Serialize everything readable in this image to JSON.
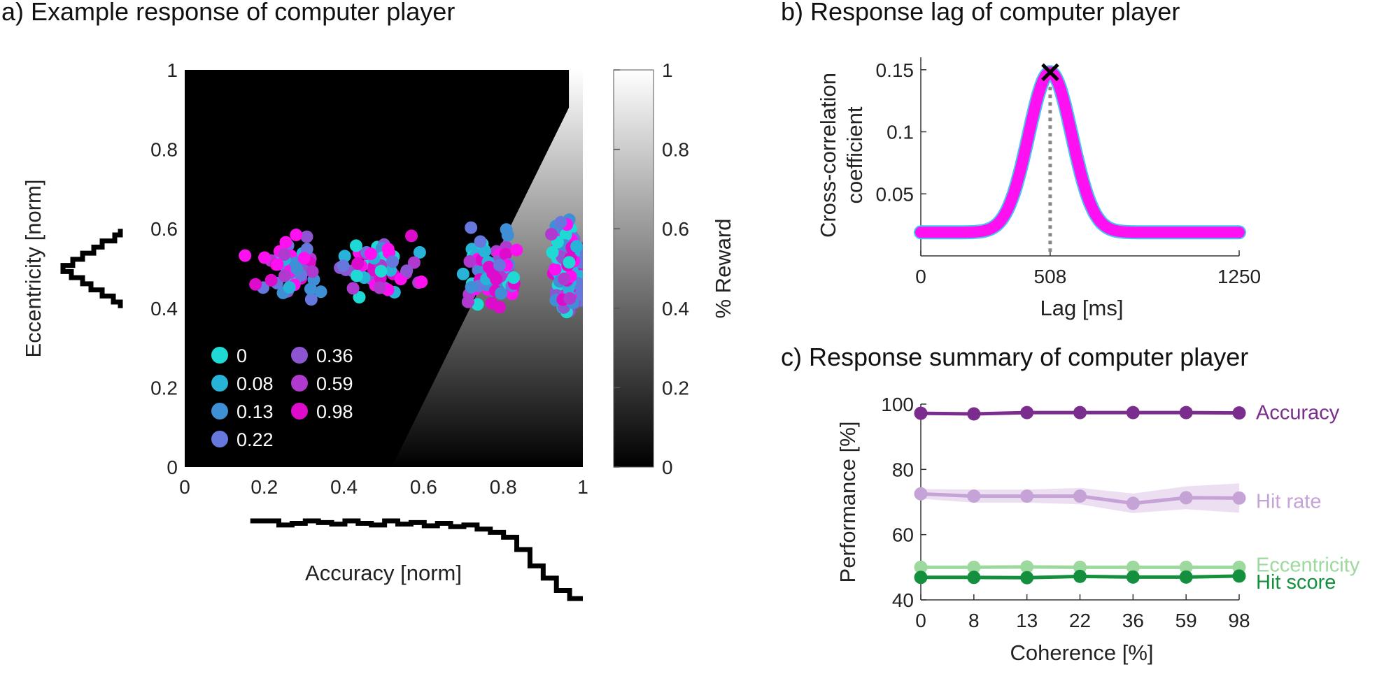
{
  "chart_data": [
    {
      "panel_title": "a) Example response of computer player",
      "type": "scatter",
      "xlabel": "Accuracy [norm]",
      "ylabel": "Eccentricity [norm]",
      "xlim": [
        0,
        1
      ],
      "ylim": [
        0,
        1
      ],
      "x_ticks": [
        "0",
        "0.2",
        "0.4",
        "0.6",
        "0.8",
        "1"
      ],
      "y_ticks": [
        "0",
        "0.2",
        "0.4",
        "0.6",
        "0.8",
        "1"
      ],
      "colorbar": {
        "label": "% Reward",
        "range": [
          0,
          1
        ],
        "ticks": [
          "0",
          "0.2",
          "0.4",
          "0.6",
          "0.8",
          "1"
        ]
      },
      "legend": {
        "placement": "lower-left",
        "entries": [
          {
            "label": "0",
            "color": "#1ed9d4"
          },
          {
            "label": "0.08",
            "color": "#27b4d8"
          },
          {
            "label": "0.13",
            "color": "#3f8fd7"
          },
          {
            "label": "0.22",
            "color": "#6677dd"
          },
          {
            "label": "0.36",
            "color": "#8e55d2"
          },
          {
            "label": "0.59",
            "color": "#b03ad0"
          },
          {
            "label": "0.98",
            "color": "#dd0ccc"
          }
        ]
      },
      "highlight_color": "#ff10f0",
      "clusters": [
        {
          "x_center": 0.27,
          "x_spread": 0.09,
          "y_spread": 0.035,
          "n": 55
        },
        {
          "x_center": 0.5,
          "x_spread": 0.09,
          "y_spread": 0.035,
          "n": 55
        },
        {
          "x_center": 0.77,
          "x_spread": 0.07,
          "y_spread": 0.04,
          "n": 80
        },
        {
          "x_center": 0.96,
          "x_spread": 0.035,
          "y_spread": 0.05,
          "n": 160
        }
      ],
      "eccentricity_histogram": [
        0.9,
        1.4,
        2.2,
        3.0,
        3.6,
        4.4,
        5.0,
        4.3,
        3.6,
        2.8,
        2.2,
        1.3,
        0.9
      ],
      "accuracy_histogram": [
        1.0,
        1.0,
        0.95,
        0.97,
        1.0,
        0.98,
        0.96,
        1.0,
        0.97,
        0.95,
        1.0,
        0.96,
        0.98,
        0.94,
        0.97,
        0.93,
        0.95,
        0.9,
        0.86,
        0.8,
        0.65,
        0.45,
        0.3,
        0.15,
        0.05
      ]
    },
    {
      "panel_title": "b) Response lag of computer player",
      "type": "line",
      "xlabel": "Lag [ms]",
      "ylabel": "Cross-correlation coefficient",
      "xlim": [
        0,
        1250
      ],
      "ylim": [
        0,
        0.16
      ],
      "x_ticks": [
        "0",
        "508",
        "1250"
      ],
      "y_ticks": [
        "0.05",
        "0.1",
        "0.15"
      ],
      "peak": {
        "x": 508,
        "y": 0.148
      },
      "baseline": 0.019,
      "color": "#ff10f0"
    },
    {
      "panel_title": "c) Response summary of computer player",
      "type": "line",
      "xlabel": "Coherence [%]",
      "ylabel": "Performance [%]",
      "ylim": [
        40,
        100
      ],
      "categories": [
        "0",
        "8",
        "13",
        "22",
        "36",
        "59",
        "98"
      ],
      "y_ticks": [
        "40",
        "60",
        "80",
        "100"
      ],
      "series": [
        {
          "name": "Accuracy",
          "color": "#7b2d8e",
          "values": [
            97.2,
            97.0,
            97.4,
            97.4,
            97.4,
            97.4,
            97.3
          ],
          "band": [
            0.4,
            0.4,
            0.4,
            0.4,
            0.4,
            0.4,
            0.4
          ]
        },
        {
          "name": "Hit rate",
          "color": "#c6a3d6",
          "values": [
            72.5,
            71.8,
            71.8,
            71.8,
            69.6,
            71.3,
            71.2
          ],
          "band": [
            1.5,
            2.0,
            2.0,
            2.5,
            3.0,
            3.5,
            4.5
          ]
        },
        {
          "name": "Eccentricity",
          "color": "#9dd89e",
          "values": [
            50.0,
            50.0,
            50.1,
            50.0,
            50.0,
            50.0,
            50.0
          ],
          "band": [
            0.5,
            0.5,
            0.5,
            0.5,
            0.5,
            0.5,
            0.5
          ]
        },
        {
          "name": "Hit score",
          "color": "#138f3e",
          "values": [
            46.9,
            46.9,
            46.8,
            47.2,
            47.0,
            47.0,
            47.3
          ],
          "band": [
            0.4,
            0.4,
            0.4,
            0.4,
            0.4,
            0.4,
            0.4
          ]
        }
      ]
    }
  ]
}
